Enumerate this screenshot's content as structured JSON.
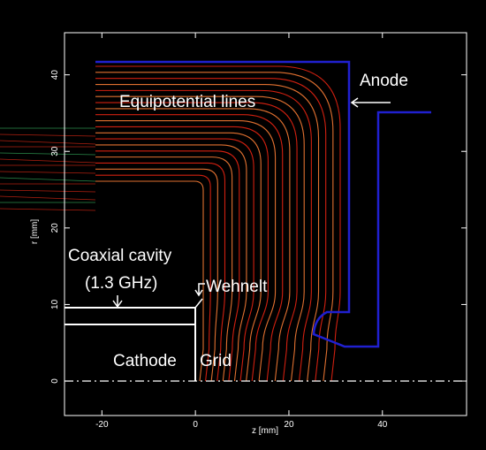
{
  "chart_data": {
    "type": "field",
    "xlabel": "z [mm]",
    "ylabel": "r [mm]",
    "xlim": [
      -28,
      58
    ],
    "ylim": [
      -4.5,
      45.5
    ],
    "xticks": [
      -20,
      0,
      20,
      40
    ],
    "yticks": [
      0,
      10,
      20,
      30,
      40
    ],
    "annotations": [
      "Equipotential lines",
      "Anode",
      "Coaxial cavity",
      "(1.3 GHz)",
      "Wehnelt",
      "Cathode",
      "Grid"
    ]
  }
}
